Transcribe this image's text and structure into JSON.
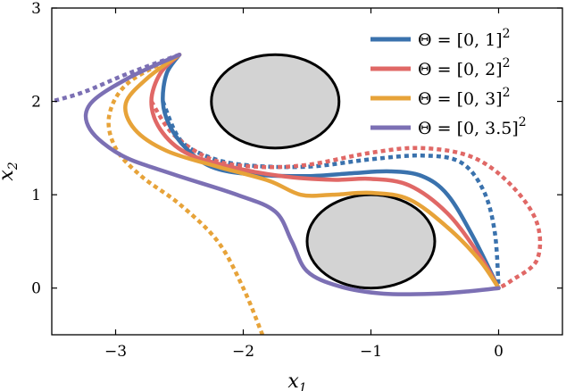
{
  "chart_data": {
    "type": "line",
    "title": "",
    "xlabel": "x",
    "xlabel_sub": "1",
    "ylabel": "x",
    "ylabel_sub": "2",
    "xlim": [
      -3.5,
      0.5
    ],
    "ylim": [
      -0.5,
      3.0
    ],
    "xticks": [
      -3,
      -2,
      -1,
      0
    ],
    "yticks": [
      0,
      1,
      2,
      3
    ],
    "xtick_labels": [
      "−3",
      "−2",
      "−1",
      "0"
    ],
    "ytick_labels": [
      "0",
      "1",
      "2",
      "3"
    ],
    "grid": false,
    "legend_position": "top-right",
    "obstacles": [
      {
        "cx": -1.75,
        "cy": 2.0,
        "rx": 0.5,
        "ry": 0.5,
        "fill": "#d3d3d3",
        "stroke": "#000000"
      },
      {
        "cx": -1.0,
        "cy": 0.5,
        "rx": 0.5,
        "ry": 0.5,
        "fill": "#d3d3d3",
        "stroke": "#000000"
      }
    ],
    "series": [
      {
        "name": "Θ = [0, 1]²",
        "legend_main": "Θ = [0, 1]",
        "legend_sup": "2",
        "color": "#3a72ad",
        "solid": [
          [
            -2.5,
            2.5
          ],
          [
            -2.6,
            2.3
          ],
          [
            -2.63,
            2.0
          ],
          [
            -2.58,
            1.75
          ],
          [
            -2.45,
            1.5
          ],
          [
            -2.25,
            1.3
          ],
          [
            -1.95,
            1.22
          ],
          [
            -1.5,
            1.2
          ],
          [
            -1.15,
            1.23
          ],
          [
            -0.85,
            1.25
          ],
          [
            -0.6,
            1.2
          ],
          [
            -0.4,
            1.0
          ],
          [
            -0.2,
            0.55
          ],
          [
            0.0,
            0.0
          ]
        ],
        "dotted": [
          [
            -2.63,
            2.0
          ],
          [
            -2.5,
            1.6
          ],
          [
            -2.3,
            1.42
          ],
          [
            -2.0,
            1.32
          ],
          [
            -1.5,
            1.3
          ],
          [
            -1.0,
            1.38
          ],
          [
            -0.6,
            1.42
          ],
          [
            -0.3,
            1.35
          ],
          [
            -0.12,
            1.05
          ],
          [
            -0.03,
            0.6
          ],
          [
            0.0,
            0.0
          ]
        ]
      },
      {
        "name": "Θ = [0, 2]²",
        "legend_main": "Θ = [0, 2]",
        "legend_sup": "2",
        "color": "#e06866",
        "solid": [
          [
            -2.5,
            2.5
          ],
          [
            -2.65,
            2.3
          ],
          [
            -2.72,
            2.0
          ],
          [
            -2.65,
            1.7
          ],
          [
            -2.45,
            1.45
          ],
          [
            -2.1,
            1.3
          ],
          [
            -1.7,
            1.2
          ],
          [
            -1.3,
            1.16
          ],
          [
            -1.0,
            1.17
          ],
          [
            -0.7,
            1.1
          ],
          [
            -0.4,
            0.8
          ],
          [
            -0.15,
            0.35
          ],
          [
            0.0,
            0.0
          ]
        ],
        "dotted": [
          [
            -2.72,
            2.0
          ],
          [
            -2.55,
            1.65
          ],
          [
            -2.25,
            1.38
          ],
          [
            -1.9,
            1.3
          ],
          [
            -1.5,
            1.32
          ],
          [
            -1.0,
            1.45
          ],
          [
            -0.6,
            1.5
          ],
          [
            -0.2,
            1.4
          ],
          [
            0.1,
            1.1
          ],
          [
            0.3,
            0.7
          ],
          [
            0.3,
            0.3
          ],
          [
            0.1,
            0.08
          ],
          [
            0.0,
            0.0
          ]
        ]
      },
      {
        "name": "Θ = [0, 3]²",
        "legend_main": "Θ = [0, 3]",
        "legend_sup": "2",
        "color": "#e7a339",
        "solid": [
          [
            -2.5,
            2.5
          ],
          [
            -2.75,
            2.25
          ],
          [
            -2.92,
            1.98
          ],
          [
            -2.85,
            1.7
          ],
          [
            -2.6,
            1.47
          ],
          [
            -2.2,
            1.3
          ],
          [
            -1.8,
            1.15
          ],
          [
            -1.55,
            1.0
          ],
          [
            -1.3,
            1.0
          ],
          [
            -1.0,
            1.02
          ],
          [
            -0.7,
            0.95
          ],
          [
            -0.4,
            0.65
          ],
          [
            -0.15,
            0.3
          ],
          [
            0.0,
            0.0
          ]
        ],
        "dotted": [
          [
            -2.5,
            2.5
          ],
          [
            -2.9,
            2.2
          ],
          [
            -3.05,
            1.85
          ],
          [
            -3.0,
            1.5
          ],
          [
            -2.8,
            1.2
          ],
          [
            -2.5,
            0.9
          ],
          [
            -2.2,
            0.5
          ],
          [
            -2.0,
            0.0
          ],
          [
            -1.85,
            -0.5
          ]
        ]
      },
      {
        "name": "Θ = [0, 3.5]²",
        "legend_main": "Θ = [0, 3.5]",
        "legend_sup": "2",
        "color": "#7c70b4",
        "solid": [
          [
            -2.5,
            2.5
          ],
          [
            -2.9,
            2.25
          ],
          [
            -3.2,
            1.97
          ],
          [
            -3.2,
            1.7
          ],
          [
            -2.95,
            1.42
          ],
          [
            -2.55,
            1.22
          ],
          [
            -2.05,
            1.0
          ],
          [
            -1.75,
            0.82
          ],
          [
            -1.62,
            0.5
          ],
          [
            -1.5,
            0.18
          ],
          [
            -1.25,
            0.02
          ],
          [
            -0.9,
            -0.06
          ],
          [
            -0.5,
            -0.06
          ],
          [
            -0.2,
            -0.03
          ],
          [
            0.0,
            0.0
          ]
        ],
        "dotted": [
          [
            -2.5,
            2.5
          ],
          [
            -2.9,
            2.3
          ],
          [
            -3.25,
            2.1
          ],
          [
            -3.5,
            2.0
          ]
        ]
      }
    ]
  }
}
